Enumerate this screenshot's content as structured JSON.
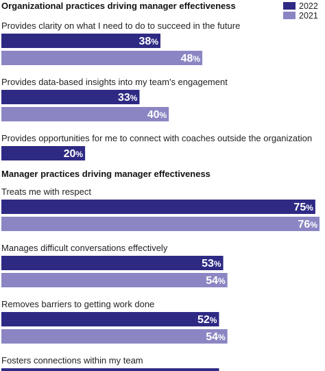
{
  "chart_data": {
    "type": "bar",
    "orientation": "horizontal",
    "xlim": [
      0,
      76
    ],
    "legend": {
      "placement": "top-right",
      "items": [
        {
          "name": "2022",
          "color": "#2e2a84"
        },
        {
          "name": "2021",
          "color": "#8b86c3"
        }
      ]
    },
    "sections": [
      {
        "title": "Organizational practices driving manager effectiveness",
        "categories": [
          {
            "label": "Provides clarity on what I need to do to succeed in the future",
            "values": {
              "2022": 38,
              "2021": 48
            }
          },
          {
            "label": "Provides data-based insights into my team's engagement",
            "values": {
              "2022": 33,
              "2021": 40
            }
          },
          {
            "label": "Provides opportunities for me to connect with coaches outside the organization",
            "values": {
              "2022": 20
            }
          }
        ]
      },
      {
        "title": "Manager practices driving manager effectiveness",
        "categories": [
          {
            "label": "Treats me with respect",
            "values": {
              "2022": 75,
              "2021": 76
            }
          },
          {
            "label": "Manages difficult conversations effectively",
            "values": {
              "2022": 53,
              "2021": 54
            }
          },
          {
            "label": "Removes barriers to getting work done",
            "values": {
              "2022": 52,
              "2021": 54
            }
          },
          {
            "label": "Fosters connections within my team",
            "values": {
              "2022": 52
            }
          }
        ]
      }
    ]
  }
}
